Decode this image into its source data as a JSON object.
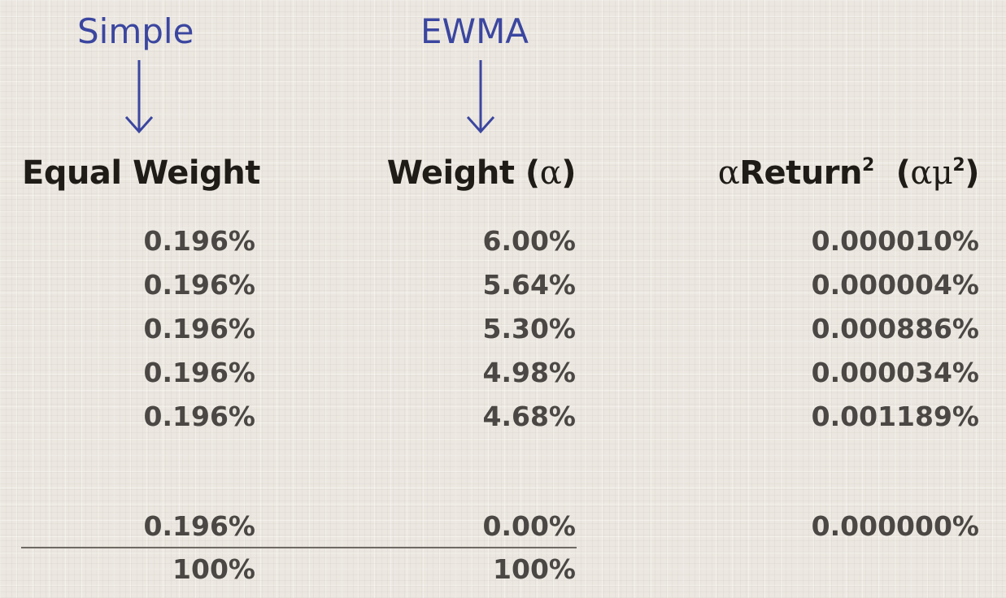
{
  "labels": {
    "simple": "Simple",
    "ewma": "EWMA"
  },
  "headers": {
    "equal_weight": "Equal Weight",
    "weight_prefix": "Weight (",
    "alpha": "α",
    "weight_suffix": ")",
    "return_alpha": "α",
    "return_word": "Return",
    "sup2": "2",
    "paren_open": "(",
    "mu": "μ",
    "paren_close": ")"
  },
  "rows": [
    {
      "equal": "0.196%",
      "weight": "6.00%",
      "areturn": "0.000010%"
    },
    {
      "equal": "0.196%",
      "weight": "5.64%",
      "areturn": "0.000004%"
    },
    {
      "equal": "0.196%",
      "weight": "5.30%",
      "areturn": "0.000886%"
    },
    {
      "equal": "0.196%",
      "weight": "4.98%",
      "areturn": "0.000034%"
    },
    {
      "equal": "0.196%",
      "weight": "4.68%",
      "areturn": "0.001189%"
    }
  ],
  "last_row": {
    "equal": "0.196%",
    "weight": "0.00%",
    "areturn": "0.000000%"
  },
  "totals": {
    "equal": "100%",
    "weight": "100%"
  },
  "colors": {
    "label_blue": "#3b46a0",
    "header_text": "#1f1c18",
    "value_text": "#4a4744",
    "background": "#ece8e1"
  }
}
